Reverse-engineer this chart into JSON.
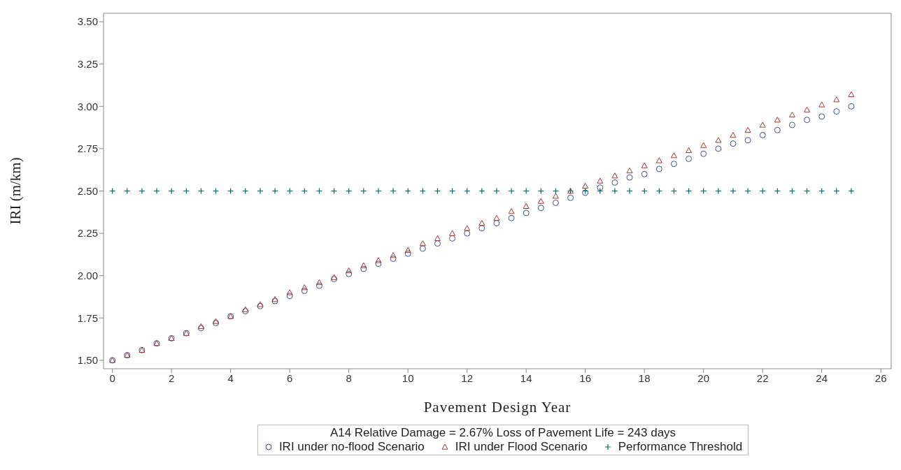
{
  "chart_data": {
    "type": "scatter",
    "xlabel": "Pavement Design Year",
    "ylabel": "IRI (m/km)",
    "legend_title": "A14 Relative Damage = 2.67% Loss of Pavement Life = 243 days",
    "legend": "bottom",
    "grid": false,
    "xlim": [
      -0.3,
      26.35
    ],
    "xticks": [
      0,
      2,
      4,
      6,
      8,
      10,
      12,
      14,
      16,
      18,
      20,
      22,
      24,
      26
    ],
    "ylim": [
      1.45,
      3.55
    ],
    "yticks": [
      {
        "value": 1.5,
        "label": "1.50"
      },
      {
        "value": 1.75,
        "label": "1.75"
      },
      {
        "value": 2,
        "label": "2.00"
      },
      {
        "value": 2.25,
        "label": "2.25"
      },
      {
        "value": 2.5,
        "label": "2.50"
      },
      {
        "value": 2.75,
        "label": "2.75"
      },
      {
        "value": 3,
        "label": "3.00"
      },
      {
        "value": 3.25,
        "label": "3.25"
      },
      {
        "value": 3.5,
        "label": "3.50"
      }
    ],
    "x": [
      0,
      0.5,
      1,
      1.5,
      2,
      2.5,
      3,
      3.5,
      4,
      4.5,
      5,
      5.5,
      6,
      6.5,
      7,
      7.5,
      8,
      8.5,
      9,
      9.5,
      10,
      10.5,
      11,
      11.5,
      12,
      12.5,
      13,
      13.5,
      14,
      14.5,
      15,
      15.5,
      16,
      16.5,
      17,
      17.5,
      18,
      18.5,
      19,
      19.5,
      20,
      20.5,
      21,
      21.5,
      22,
      22.5,
      23,
      23.5,
      24,
      24.5,
      25
    ],
    "series": [
      {
        "name": "IRI under no-flood Scenario",
        "color": "#3f4f9c",
        "marker": "circle",
        "values": [
          1.5,
          1.53,
          1.56,
          1.6,
          1.63,
          1.66,
          1.69,
          1.72,
          1.76,
          1.79,
          1.82,
          1.85,
          1.88,
          1.91,
          1.94,
          1.98,
          2.01,
          2.04,
          2.07,
          2.1,
          2.13,
          2.16,
          2.19,
          2.22,
          2.25,
          2.28,
          2.31,
          2.34,
          2.37,
          2.4,
          2.43,
          2.46,
          2.49,
          2.52,
          2.55,
          2.58,
          2.6,
          2.63,
          2.66,
          2.69,
          2.72,
          2.75,
          2.78,
          2.8,
          2.83,
          2.86,
          2.89,
          2.92,
          2.94,
          2.97,
          3.0
        ]
      },
      {
        "name": "IRI under Flood Scenario",
        "color": "#a33a2e",
        "marker": "triangle",
        "values": [
          1.5,
          1.53,
          1.56,
          1.6,
          1.63,
          1.66,
          1.7,
          1.73,
          1.76,
          1.8,
          1.83,
          1.86,
          1.9,
          1.93,
          1.96,
          1.99,
          2.03,
          2.06,
          2.09,
          2.12,
          2.15,
          2.19,
          2.22,
          2.25,
          2.28,
          2.31,
          2.34,
          2.38,
          2.41,
          2.44,
          2.47,
          2.5,
          2.53,
          2.56,
          2.59,
          2.62,
          2.65,
          2.68,
          2.71,
          2.74,
          2.77,
          2.8,
          2.83,
          2.86,
          2.89,
          2.92,
          2.95,
          2.98,
          3.01,
          3.04,
          3.07
        ]
      },
      {
        "name": "Performance Threshold",
        "color": "#006e5e",
        "marker": "cross",
        "values": [
          2.5,
          2.5,
          2.5,
          2.5,
          2.5,
          2.5,
          2.5,
          2.5,
          2.5,
          2.5,
          2.5,
          2.5,
          2.5,
          2.5,
          2.5,
          2.5,
          2.5,
          2.5,
          2.5,
          2.5,
          2.5,
          2.5,
          2.5,
          2.5,
          2.5,
          2.5,
          2.5,
          2.5,
          2.5,
          2.5,
          2.5,
          2.5,
          2.5,
          2.5,
          2.5,
          2.5,
          2.5,
          2.5,
          2.5,
          2.5,
          2.5,
          2.5,
          2.5,
          2.5,
          2.5,
          2.5,
          2.5,
          2.5,
          2.5,
          2.5,
          2.5
        ]
      }
    ]
  }
}
